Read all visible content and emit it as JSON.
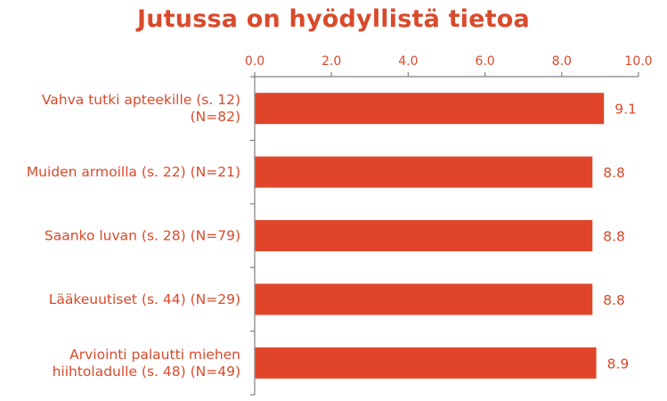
{
  "chart_data": {
    "type": "bar",
    "orientation": "horizontal",
    "title": "Jutussa on hyödyllistä tietoa",
    "categories": [
      [
        "Vahva tutki apteekille (s. 12)",
        "(N=82)"
      ],
      [
        "Muiden armoilla (s. 22) (N=21)"
      ],
      [
        "Saanko luvan (s. 28) (N=79)"
      ],
      [
        "Lääkeuutiset (s. 44) (N=29)"
      ],
      [
        "Arviointi palautti miehen",
        "hiihtoladulle (s. 48) (N=49)"
      ]
    ],
    "values": [
      9.1,
      8.8,
      8.8,
      8.8,
      8.9
    ],
    "value_labels": [
      "9.1",
      "8.8",
      "8.8",
      "8.8",
      "8.9"
    ],
    "xlim": [
      0,
      10
    ],
    "xticks": [
      "0.0",
      "2.0",
      "4.0",
      "6.0",
      "8.0",
      "10.0"
    ],
    "axis_position": "top",
    "grid": false,
    "legend": "none",
    "colors": {
      "bar": "#e0452a",
      "text": "#d94a2b",
      "axis": "#7f7f7f"
    }
  }
}
